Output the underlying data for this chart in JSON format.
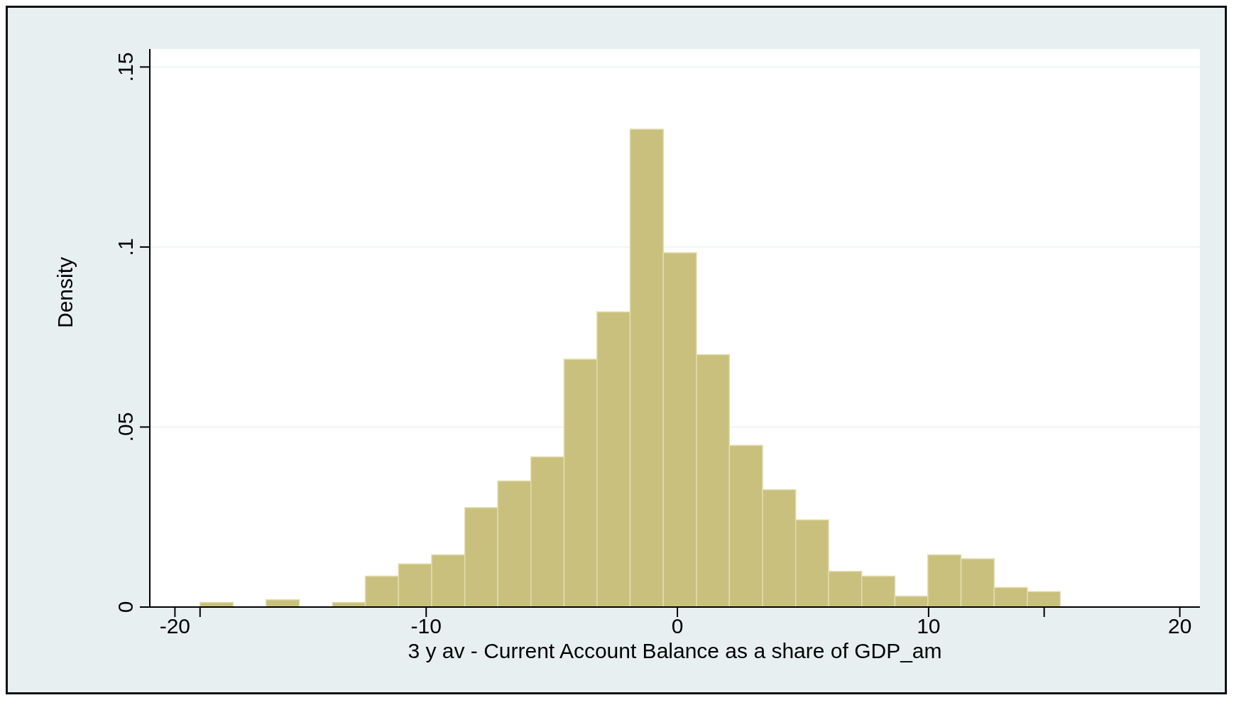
{
  "chart_data": {
    "type": "histogram",
    "xlabel": "3 y av - Current Account Balance as a share of GDP_am",
    "ylabel": "Density",
    "bins": [
      -19,
      -17.68,
      -16.37,
      -15.05,
      -13.73,
      -12.42,
      -11.1,
      -9.78,
      -8.46,
      -7.15,
      -5.83,
      -4.51,
      -3.2,
      -1.88,
      -0.56,
      0.76,
      2.07,
      3.39,
      4.71,
      6.02,
      7.34,
      8.66,
      9.97,
      11.29,
      12.61,
      13.93,
      15.24
    ],
    "values": [
      0.0013,
      0,
      0.002,
      0,
      0.0013,
      0.0086,
      0.012,
      0.0145,
      0.0276,
      0.035,
      0.0417,
      0.0688,
      0.082,
      0.1327,
      0.0984,
      0.0701,
      0.0449,
      0.0326,
      0.0242,
      0.0099,
      0.0086,
      0.003,
      0.0145,
      0.0134,
      0.0054,
      0.0043
    ],
    "color": "#c8c07c",
    "xlim": [
      -21,
      20.8
    ],
    "ylim": [
      0,
      0.155
    ],
    "xticks": [
      -20,
      {
        "value": -19,
        "label": null
      },
      -10,
      0,
      10,
      {
        "value": 14.6,
        "label": null
      },
      20
    ],
    "yticks": [
      0,
      {
        "value": 0.05,
        "label": ".05"
      },
      {
        "value": 0.1,
        "label": ".1"
      },
      {
        "value": 0.15,
        "label": ".15"
      }
    ],
    "grid": "y"
  }
}
